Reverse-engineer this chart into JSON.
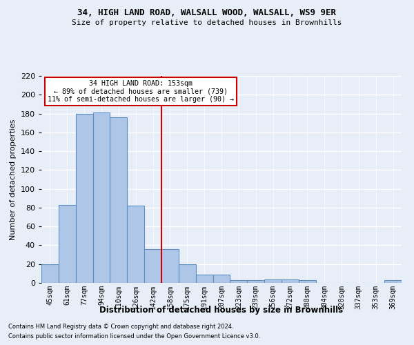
{
  "title1": "34, HIGH LAND ROAD, WALSALL WOOD, WALSALL, WS9 9ER",
  "title2": "Size of property relative to detached houses in Brownhills",
  "xlabel": "Distribution of detached houses by size in Brownhills",
  "ylabel": "Number of detached properties",
  "bin_labels": [
    "45sqm",
    "61sqm",
    "77sqm",
    "94sqm",
    "110sqm",
    "126sqm",
    "142sqm",
    "158sqm",
    "175sqm",
    "191sqm",
    "207sqm",
    "223sqm",
    "239sqm",
    "256sqm",
    "272sqm",
    "288sqm",
    "304sqm",
    "320sqm",
    "337sqm",
    "353sqm",
    "369sqm"
  ],
  "bar_heights": [
    20,
    83,
    180,
    181,
    176,
    82,
    36,
    36,
    20,
    9,
    9,
    3,
    3,
    4,
    4,
    3,
    0,
    0,
    0,
    0,
    3
  ],
  "bar_color": "#aec6e8",
  "bar_edge_color": "#5a8fc0",
  "annotation_line0": "34 HIGH LAND ROAD: 153sqm",
  "annotation_line1": "← 89% of detached houses are smaller (739)",
  "annotation_line2": "11% of semi-detached houses are larger (90) →",
  "annotation_box_color": "#ffffff",
  "annotation_box_edge_color": "#cc0000",
  "vline_color": "#cc0000",
  "ylim": [
    0,
    220
  ],
  "yticks": [
    0,
    20,
    40,
    60,
    80,
    100,
    120,
    140,
    160,
    180,
    200,
    220
  ],
  "footer_line1": "Contains HM Land Registry data © Crown copyright and database right 2024.",
  "footer_line2": "Contains public sector information licensed under the Open Government Licence v3.0.",
  "bg_color": "#e8eef8",
  "grid_color": "#ffffff"
}
